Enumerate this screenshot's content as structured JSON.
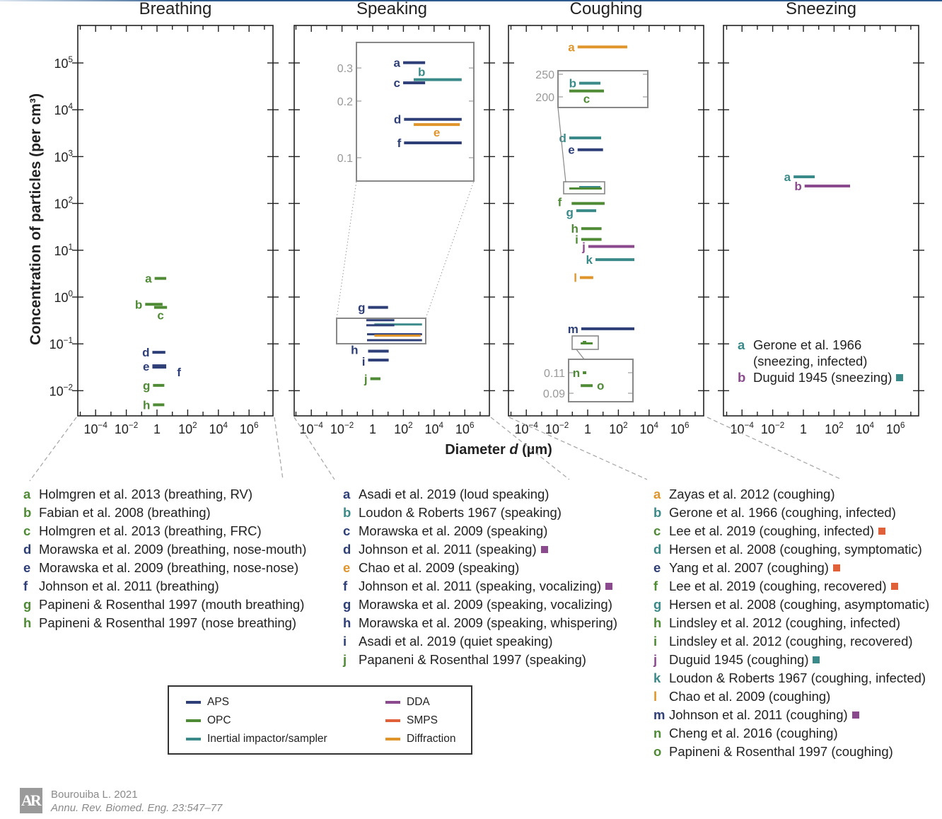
{
  "chart_data": {
    "type": "bar",
    "subtype": "horizontal range bars (diameter range vs. concentration), log-log",
    "ylabel": "Concentration of particles (per cm³)",
    "xlabel": {
      "prefix": "Diameter ",
      "var": "d",
      "suffix": " (µm)"
    },
    "ylim": [
      0.003,
      600000
    ],
    "xlim": [
      1e-05,
      30000000
    ],
    "yscale": "log",
    "xscale": "log",
    "yticks": [
      {
        "base": "10",
        "exp": "5",
        "value": 100000
      },
      {
        "base": "10",
        "exp": "4",
        "value": 10000
      },
      {
        "base": "10",
        "exp": "3",
        "value": 1000
      },
      {
        "base": "10",
        "exp": "2",
        "value": 100
      },
      {
        "base": "10",
        "exp": "1",
        "value": 10
      },
      {
        "base": "10",
        "exp": "0",
        "value": 1
      },
      {
        "base": "10",
        "exp": "−1",
        "value": 0.1
      },
      {
        "base": "10",
        "exp": "−2",
        "value": 0.01
      }
    ],
    "xticks": [
      {
        "base": "10",
        "exp": "−4",
        "value": 0.0001
      },
      {
        "base": "10",
        "exp": "−2",
        "value": 0.01
      },
      {
        "base": "1",
        "exp": "",
        "value": 1
      },
      {
        "base": "10",
        "exp": "2",
        "value": 100
      },
      {
        "base": "10",
        "exp": "4",
        "value": 10000
      },
      {
        "base": "10",
        "exp": "6",
        "value": 1000000
      }
    ],
    "methods": {
      "APS": "#2e3f78",
      "OPC": "#4f8a35",
      "Inertial": "#3b8a8a",
      "DDA": "#8b4a8e",
      "SMPS": "#e0603a",
      "Diffraction": "#e0952b"
    },
    "legend": [
      {
        "method": "APS",
        "label": "APS"
      },
      {
        "method": "OPC",
        "label": "OPC"
      },
      {
        "method": "Inertial",
        "label": "Inertial impactor/sampler"
      },
      {
        "method": "DDA",
        "label": "DDA"
      },
      {
        "method": "SMPS",
        "label": "SMPS"
      },
      {
        "method": "Diffraction",
        "label": "Diffraction"
      }
    ],
    "panels": [
      {
        "title": "Breathing",
        "bars": [
          {
            "id": "a",
            "method": "OPC",
            "d": [
              0.7,
              4
            ],
            "conc": 2.5
          },
          {
            "id": "b",
            "method": "OPC",
            "d": [
              0.17,
              2.3
            ],
            "conc": 0.7
          },
          {
            "id": "c",
            "method": "OPC",
            "d": [
              0.65,
              4.5
            ],
            "conc": 0.6,
            "label_pos": "below"
          },
          {
            "id": "d",
            "method": "APS",
            "d": [
              0.5,
              3.5
            ],
            "conc": 0.066
          },
          {
            "id": "e",
            "method": "APS",
            "d": [
              0.5,
              4
            ],
            "conc": 0.033
          },
          {
            "id": "f",
            "method": "APS",
            "d": null,
            "conc": 0.025,
            "label_d": 24
          },
          {
            "id": "g",
            "method": "OPC",
            "d": [
              0.55,
              3
            ],
            "conc": 0.013
          },
          {
            "id": "h",
            "method": "OPC",
            "d": [
              0.55,
              3
            ],
            "conc": 0.005
          }
        ],
        "insets": []
      },
      {
        "title": "Speaking",
        "bars": [
          {
            "id": "g",
            "method": "APS",
            "d": [
              0.5,
              10
            ],
            "conc": 0.6
          },
          {
            "id": "h",
            "method": "APS",
            "d": [
              0.5,
              11
            ],
            "conc": 0.07
          },
          {
            "id": "i",
            "method": "APS",
            "d": [
              0.5,
              11
            ],
            "conc": 0.045
          },
          {
            "id": "j",
            "method": "OPC",
            "d": [
              0.7,
              3.2
            ],
            "conc": 0.018
          }
        ],
        "insets": [
          {
            "ticks": [
              {
                "label": "0.3",
                "value": 0.3
              },
              {
                "label": "0.2",
                "value": 0.2
              },
              {
                "label": "0.1",
                "value": 0.1
              }
            ],
            "bars": [
              {
                "id": "a",
                "method": "APS",
                "d": [
                  0.9,
                  11
                ],
                "conc": 0.32
              },
              {
                "id": "b",
                "method": "Inertial",
                "d": [
                  3,
                  700
                ],
                "conc": 0.26,
                "label_pos": "above"
              },
              {
                "id": "c",
                "method": "APS",
                "d": [
                  0.9,
                  11
                ],
                "conc": 0.25
              },
              {
                "id": "d",
                "method": "APS",
                "d": [
                  1,
                  700
                ],
                "conc": 0.16
              },
              {
                "id": "e",
                "method": "Diffraction",
                "d": [
                  3,
                  570
                ],
                "conc": 0.15,
                "label_pos": "below"
              },
              {
                "id": "f",
                "method": "APS",
                "d": [
                  1,
                  700
                ],
                "conc": 0.12
              }
            ]
          }
        ]
      },
      {
        "title": "Coughing",
        "bars": [
          {
            "id": "a",
            "method": "Diffraction",
            "d": [
              0.22,
              380
            ],
            "conc": 220000
          },
          {
            "id": "d",
            "method": "Inertial",
            "d": [
              0.063,
              7.5
            ],
            "conc": 2500
          },
          {
            "id": "e",
            "method": "APS",
            "d": [
              0.22,
              10
            ],
            "conc": 1400
          },
          {
            "id": "f",
            "method": "OPC",
            "d": [
              0.09,
              12.7
            ],
            "conc": 100
          },
          {
            "id": "g",
            "method": "Inertial",
            "d": [
              0.18,
              3.6
            ],
            "conc": 70
          },
          {
            "id": "h",
            "method": "OPC",
            "d": [
              0.38,
              8
            ],
            "conc": 29
          },
          {
            "id": "i",
            "method": "OPC",
            "d": [
              0.38,
              8
            ],
            "conc": 17
          },
          {
            "id": "j",
            "method": "DDA",
            "d": [
              1.1,
              1100
            ],
            "conc": 12
          },
          {
            "id": "k",
            "method": "Inertial",
            "d": [
              3.2,
              1100
            ],
            "conc": 6.3
          },
          {
            "id": "l",
            "method": "Diffraction",
            "d": [
              0.31,
              2.3
            ],
            "conc": 2.6
          },
          {
            "id": "m",
            "method": "APS",
            "d": [
              0.38,
              1100
            ],
            "conc": 0.21
          }
        ],
        "insets": [
          {
            "ticks": [
              {
                "label": "250",
                "value": 250
              },
              {
                "label": "200",
                "value": 200
              }
            ],
            "bars": [
              {
                "id": "b",
                "method": "Inertial",
                "d": [
                  0.28,
                  6.8
                ],
                "conc": 229
              },
              {
                "id": "c",
                "method": "OPC",
                "d": [
                  0.063,
                  11.5
                ],
                "conc": 212,
                "label_pos": "below"
              }
            ]
          },
          {
            "ticks": [
              {
                "label": "0.11",
                "value": 0.11
              },
              {
                "label": "0.09",
                "value": 0.09
              }
            ],
            "bars": [
              {
                "id": "n",
                "method": "OPC",
                "d": [
                  0.48,
                  0.81
                ],
                "conc": 0.11
              },
              {
                "id": "o",
                "method": "OPC",
                "d": [
                  0.35,
                  2.1
                ],
                "conc": 0.097,
                "label_pos": "right"
              }
            ]
          }
        ]
      },
      {
        "title": "Sneezing",
        "bars": [
          {
            "id": "a",
            "method": "Inertial",
            "d": [
              0.23,
              5.5
            ],
            "conc": 370
          },
          {
            "id": "b",
            "method": "DDA",
            "d": [
              1.2,
              1100
            ],
            "conc": 235
          }
        ],
        "insets": []
      }
    ]
  },
  "references": {
    "breathing": [
      {
        "id": "a",
        "method": "OPC",
        "text": "Holmgren et al. 2013 (breathing, RV)"
      },
      {
        "id": "b",
        "method": "OPC",
        "text": "Fabian et al. 2008 (breathing)"
      },
      {
        "id": "c",
        "method": "OPC",
        "text": "Holmgren et al. 2013 (breathing, FRC)"
      },
      {
        "id": "d",
        "method": "APS",
        "text": "Morawska et al. 2009 (breathing, nose-mouth)"
      },
      {
        "id": "e",
        "method": "APS",
        "text": "Morawska et al. 2009 (breathing, nose-nose)"
      },
      {
        "id": "f",
        "method": "APS",
        "text": "Johnson et al. 2011 (breathing)"
      },
      {
        "id": "g",
        "method": "OPC",
        "text": "Papineni & Rosenthal 1997 (mouth breathing)"
      },
      {
        "id": "h",
        "method": "OPC",
        "text": "Papineni & Rosenthal 1997 (nose breathing)"
      }
    ],
    "speaking": [
      {
        "id": "a",
        "method": "APS",
        "text": "Asadi et al. 2019 (loud speaking)"
      },
      {
        "id": "b",
        "method": "Inertial",
        "text": "Loudon & Roberts 1967 (speaking)"
      },
      {
        "id": "c",
        "method": "APS",
        "text": "Morawska et al. 2009 (speaking)"
      },
      {
        "id": "d",
        "method": "APS",
        "text": "Johnson et al. 2011 (speaking)",
        "marker": "DDA"
      },
      {
        "id": "e",
        "method": "Diffraction",
        "text": "Chao et al. 2009 (speaking)"
      },
      {
        "id": "f",
        "method": "APS",
        "text": "Johnson et al. 2011 (speaking, vocalizing)",
        "marker": "DDA"
      },
      {
        "id": "g",
        "method": "APS",
        "text": "Morawska et al. 2009 (speaking, vocalizing)"
      },
      {
        "id": "h",
        "method": "APS",
        "text": "Morawska et al. 2009 (speaking, whispering)"
      },
      {
        "id": "i",
        "method": "APS",
        "text": "Asadi et al. 2019 (quiet speaking)"
      },
      {
        "id": "j",
        "method": "OPC",
        "text": "Papaneni & Rosenthal 1997 (speaking)"
      }
    ],
    "coughing": [
      {
        "id": "a",
        "method": "Diffraction",
        "text": "Zayas et al. 2012 (coughing)"
      },
      {
        "id": "b",
        "method": "Inertial",
        "text": "Gerone et al. 1966 (coughing, infected)"
      },
      {
        "id": "c",
        "method": "OPC",
        "text": "Lee et al. 2019 (coughing, infected)",
        "marker": "SMPS"
      },
      {
        "id": "d",
        "method": "Inertial",
        "text": "Hersen et al. 2008 (coughing, symptomatic)"
      },
      {
        "id": "e",
        "method": "APS",
        "text": "Yang et al. 2007 (coughing)",
        "marker": "SMPS"
      },
      {
        "id": "f",
        "method": "OPC",
        "text": "Lee et al. 2019 (coughing, recovered)",
        "marker": "SMPS"
      },
      {
        "id": "g",
        "method": "Inertial",
        "text": "Hersen et al. 2008 (coughing, asymptomatic)"
      },
      {
        "id": "h",
        "method": "OPC",
        "text": "Lindsley et al. 2012 (coughing, infected)"
      },
      {
        "id": "i",
        "method": "OPC",
        "text": "Lindsley et al. 2012 (coughing, recovered)"
      },
      {
        "id": "j",
        "method": "DDA",
        "text": "Duguid 1945 (coughing)",
        "marker": "Inertial"
      },
      {
        "id": "k",
        "method": "Inertial",
        "text": "Loudon & Roberts 1967 (coughing, infected)"
      },
      {
        "id": "l",
        "method": "Diffraction",
        "text": "Chao et al. 2009 (coughing)"
      },
      {
        "id": "m",
        "method": "APS",
        "text": "Johnson et al. 2011 (coughing)",
        "marker": "DDA"
      },
      {
        "id": "n",
        "method": "OPC",
        "text": "Cheng et al. 2016 (coughing)"
      },
      {
        "id": "o",
        "method": "OPC",
        "text": "Papineni & Rosenthal 1997 (coughing)"
      }
    ],
    "sneezing": [
      {
        "id": "a",
        "method": "Inertial",
        "text": "Gerone et al. 1966",
        "text2": "(sneezing, infected)"
      },
      {
        "id": "b",
        "method": "DDA",
        "text": "Duguid 1945 (sneezing)",
        "marker": "Inertial"
      }
    ]
  },
  "footer": {
    "logo": "AR",
    "author": "Bourouiba L. 2021",
    "journal": "Annu. Rev. Biomed. Eng. 23:547–77"
  }
}
